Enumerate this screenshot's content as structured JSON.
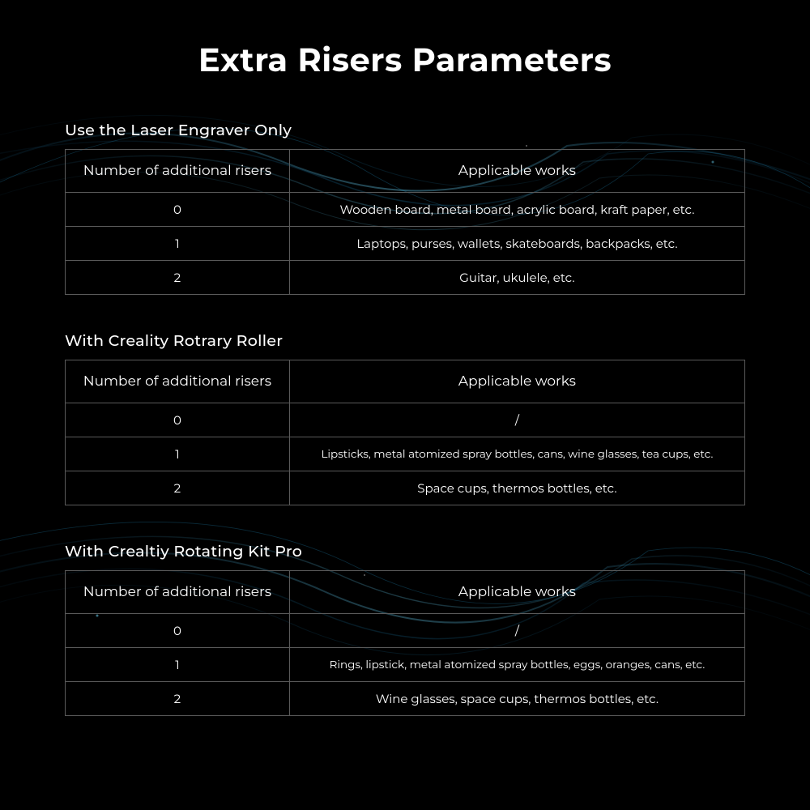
{
  "title": "Extra Risers Parameters",
  "colors": {
    "background": "#000000",
    "text": "#ffffff",
    "border": "#5a5a5a",
    "wave_primary": "#0a4a6e",
    "wave_secondary": "#1a7aa8",
    "wave_accent": "#2090c0"
  },
  "typography": {
    "title_fontsize": 40,
    "title_weight": 700,
    "section_title_fontsize": 19,
    "header_fontsize": 17,
    "cell_fontsize": 15,
    "small_cell_fontsize": 13.5,
    "font_family": "Montserrat"
  },
  "sections": [
    {
      "title": "Use the Laser Engraver Only",
      "columns": [
        "Number of additional risers",
        "Applicable works"
      ],
      "rows": [
        {
          "risers": "0",
          "works": "Wooden board, metal board, acrylic board, kraft paper, etc.",
          "small": false
        },
        {
          "risers": "1",
          "works": "Laptops, purses, wallets, skateboards, backpacks, etc.",
          "small": false
        },
        {
          "risers": "2",
          "works": "Guitar, ukulele, etc.",
          "small": false
        }
      ]
    },
    {
      "title": "With Creality Rotrary Roller",
      "columns": [
        "Number of additional risers",
        "Applicable works"
      ],
      "rows": [
        {
          "risers": "0",
          "works": "/",
          "small": false
        },
        {
          "risers": "1",
          "works": "Lipsticks, metal atomized spray bottles, cans, wine glasses, tea cups, etc.",
          "small": true
        },
        {
          "risers": "2",
          "works": "Space cups, thermos bottles, etc.",
          "small": false
        }
      ]
    },
    {
      "title": "With Crealtiy Rotating Kit Pro",
      "columns": [
        "Number of additional risers",
        "Applicable works"
      ],
      "rows": [
        {
          "risers": "0",
          "works": "/",
          "small": false
        },
        {
          "risers": "1",
          "works": "Rings, lipstick, metal atomized spray bottles, eggs, oranges, cans, etc.",
          "small": true
        },
        {
          "risers": "2",
          "works": "Wine glasses, space cups, thermos bottles, etc.",
          "small": false
        }
      ]
    }
  ]
}
